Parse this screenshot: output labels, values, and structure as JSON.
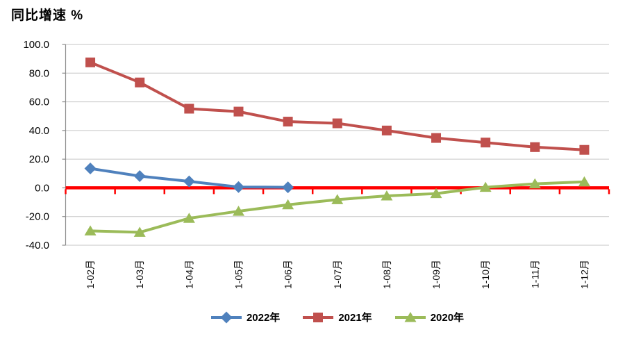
{
  "chart_data": {
    "type": "line",
    "title": "同比增速 %",
    "xlabel": "",
    "ylabel": "同比增速 %",
    "categories": [
      "1-02月",
      "1-03月",
      "1-04月",
      "1-05月",
      "1-06月",
      "1-07月",
      "1-08月",
      "1-09月",
      "1-10月",
      "1-11月",
      "1-12月"
    ],
    "series": [
      {
        "name": "2022年",
        "color": "#4F81BD",
        "marker": "diamond",
        "values": [
          13.5,
          8.2,
          4.5,
          0.6,
          0.4,
          null,
          null,
          null,
          null,
          null,
          null
        ]
      },
      {
        "name": "2021年",
        "color": "#C0504D",
        "marker": "square",
        "values": [
          87.5,
          73.5,
          55.2,
          53.2,
          46.2,
          45.0,
          40.0,
          34.8,
          31.6,
          28.4,
          26.5
        ]
      },
      {
        "name": "2020年",
        "color": "#9BBB59",
        "marker": "triangle",
        "values": [
          -30.0,
          -31.0,
          -21.2,
          -16.3,
          -11.8,
          -8.2,
          -5.6,
          -4.0,
          0.4,
          2.8,
          4.2
        ]
      }
    ],
    "ylim": [
      -40,
      100
    ],
    "ytick_step": 20,
    "yticks": [
      "100.0",
      "80.0",
      "60.0",
      "40.0",
      "20.0",
      "0.0",
      "-20.0",
      "-40.0"
    ],
    "grid": true,
    "gridline_color": "#C6C6C6",
    "axis_color": "#8C8C8C",
    "zero_line_color": "#FF0000",
    "legend_position": "bottom"
  }
}
